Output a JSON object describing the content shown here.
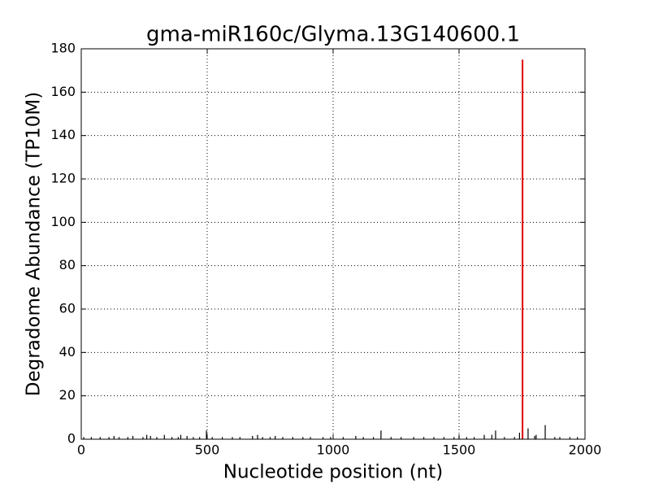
{
  "chart_data": {
    "type": "stem",
    "title": "gma-miR160c/Glyma.13G140600.1",
    "xlabel": "Nucleotide position (nt)",
    "ylabel": "Degradome Abundance (TP10M)",
    "xlim": [
      0,
      2000
    ],
    "xticks": [
      0,
      500,
      1000,
      1500,
      2000
    ],
    "ylim": [
      0,
      180
    ],
    "yticks": [
      0,
      20,
      40,
      60,
      80,
      100,
      120,
      140,
      160,
      180
    ],
    "grid": true,
    "series": [
      {
        "color": "#000000",
        "x": [
          10,
          40,
          75,
          110,
          130,
          150,
          185,
          205,
          245,
          260,
          275,
          300,
          330,
          360,
          385,
          395,
          420,
          445,
          470,
          497,
          520,
          560,
          600,
          630,
          680,
          700,
          720,
          750,
          770,
          800,
          840,
          880,
          910,
          960,
          990,
          1040,
          1090,
          1120,
          1160,
          1190,
          1230,
          1270,
          1320,
          1360,
          1400,
          1440,
          1480,
          1500,
          1530,
          1560,
          1600,
          1630,
          1645,
          1680,
          1720,
          1740,
          1774,
          1800,
          1806,
          1842,
          1880,
          1900,
          1940,
          1970
        ],
        "values": [
          1,
          1,
          1,
          1,
          1.5,
          1,
          1,
          1.5,
          1,
          2,
          1.5,
          1,
          2,
          1,
          1,
          2,
          1.5,
          1,
          1,
          4,
          1,
          1,
          1,
          1,
          1.5,
          2,
          1,
          1,
          1.5,
          1,
          1,
          1,
          1,
          1,
          1,
          1,
          1.5,
          1,
          1,
          4,
          1,
          1,
          1,
          1,
          1,
          1,
          1,
          1.5,
          1,
          1,
          2,
          2,
          4,
          1,
          1,
          3,
          5,
          1.5,
          2,
          6.5,
          1,
          1,
          1,
          1
        ]
      },
      {
        "color": "#e00000",
        "x": [
          1752
        ],
        "values": [
          175
        ]
      }
    ]
  }
}
